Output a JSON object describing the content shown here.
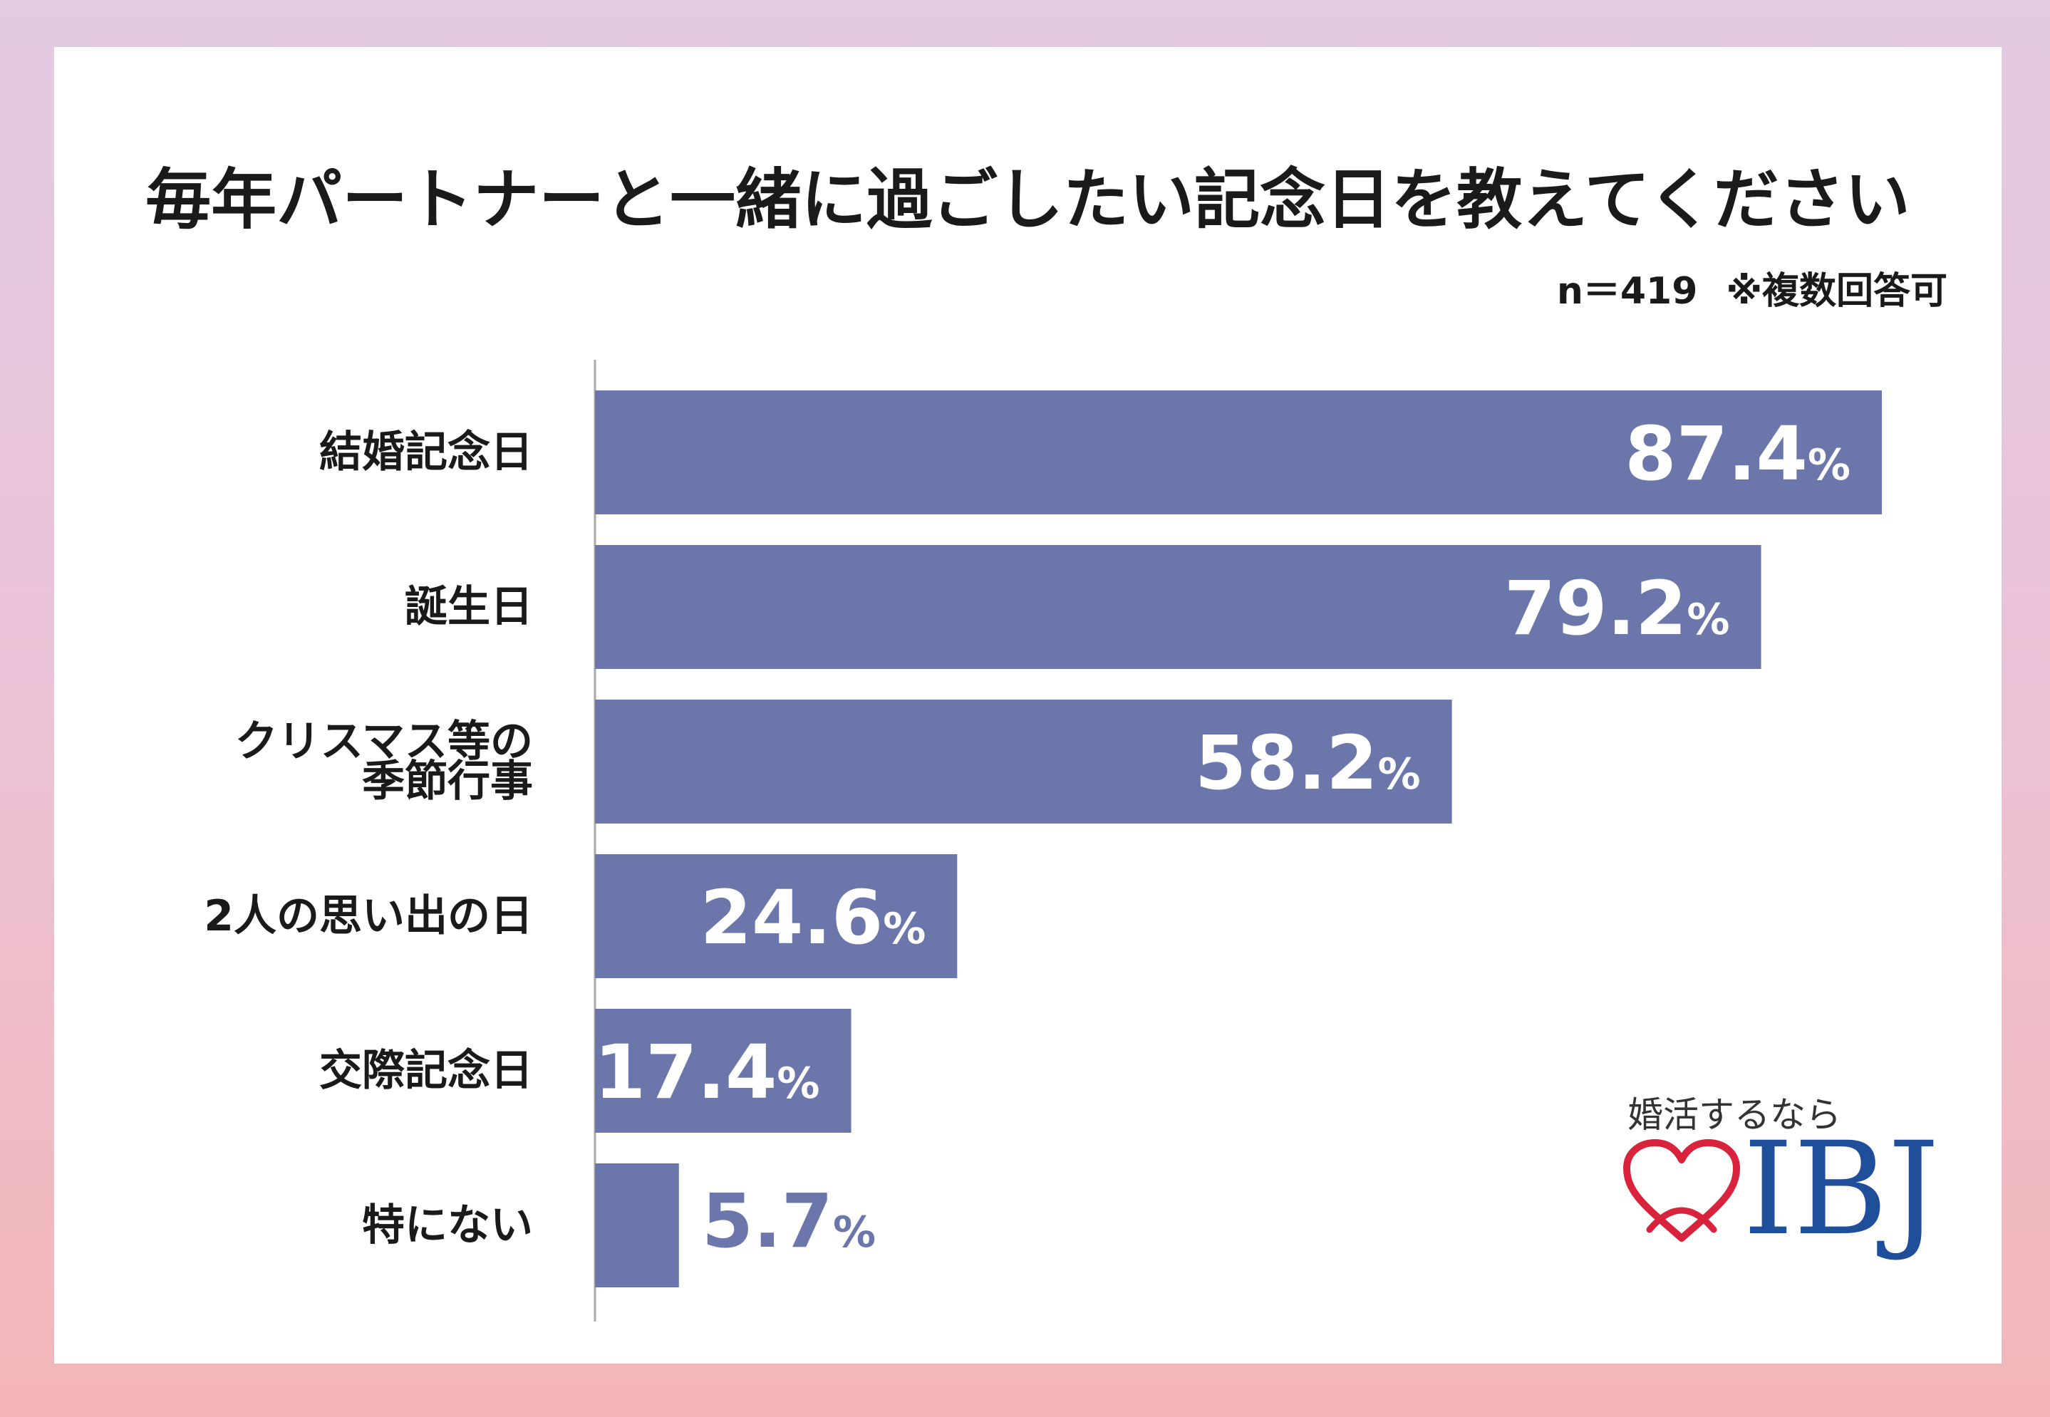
{
  "header": {
    "title": "毎年パートナーと一緒に過ごしたい記念日を教えてください",
    "sample": "n＝419",
    "note": "※複数回答可"
  },
  "chart_data": {
    "type": "bar",
    "orientation": "horizontal",
    "title": "毎年パートナーと一緒に過ごしたい記念日を教えてください",
    "categories": [
      [
        "結婚記念日"
      ],
      [
        "誕生日"
      ],
      [
        "クリスマス等の",
        "季節行事"
      ],
      [
        "2人の思い出の日"
      ],
      [
        "交際記念日"
      ],
      [
        "特にない"
      ]
    ],
    "values": [
      87.4,
      79.2,
      58.2,
      24.6,
      17.4,
      5.7
    ],
    "value_labels": [
      "87.4",
      "79.2",
      "58.2",
      "24.6",
      "17.4",
      "5.7"
    ],
    "unit": "%",
    "xlim": [
      0,
      87.4
    ],
    "xlabel": "",
    "ylabel": "",
    "colors": {
      "bar": "#6b76ab",
      "label_inside": "#ffffff",
      "label_outside": "#6b76ab",
      "axis": "#aaaaaa"
    }
  },
  "logo": {
    "tagline": "婚活するなら",
    "mark": "IBJ",
    "heart_color": "#d9223b",
    "mark_color": "#1f4e9a"
  }
}
